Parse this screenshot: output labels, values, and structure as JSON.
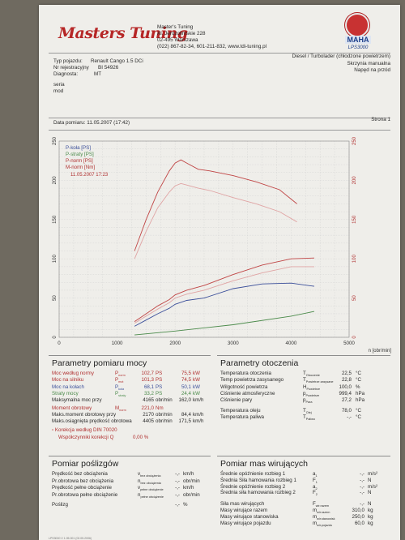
{
  "header": {
    "company": "Master's Tuning",
    "address1": "Al. Jerozolimskie 228",
    "address2": "02-495 Warszawa",
    "contact": "(022) 867-82-34, 601-211-832, www.tdi-tuning.pl",
    "logo": "Masters Tuning",
    "brand": "MAHA",
    "brand_model": "LPS3000"
  },
  "vehicle": {
    "type_label": "Typ pojazdu:",
    "type_value": "Renault Cango 1.5 DCi",
    "reg_label": "Nr rejestracyjny",
    "reg_value": "BI 54926",
    "diag_label": "Diagnosta:",
    "diag_value": "MT",
    "fuel": "Diesel / Turbolader (chłodzone powietrzem)",
    "gearbox": "Skrzynia manualna",
    "drive": "Napęd na przód",
    "seria": "seria",
    "mod": "mod"
  },
  "meta": {
    "date_label": "Data pomiaru: 11.05.2007 (17:42)",
    "page_label": "Strona 1"
  },
  "chart_data": {
    "type": "line",
    "xlabel": "n [obr/min]",
    "x_ticks": [
      "0",
      "1000",
      "2000",
      "3000",
      "4000",
      "5000"
    ],
    "y_left_ticks": [
      "0",
      "50",
      "100",
      "150",
      "200",
      "250"
    ],
    "y_right_ticks": [
      "0",
      "50",
      "100",
      "150",
      "200",
      "250"
    ],
    "xlim": [
      0,
      5000
    ],
    "ylim": [
      0,
      250
    ],
    "grid": true,
    "legend_position": "top-left",
    "legend": [
      {
        "name": "P-koła [PS]",
        "color": "#3b4f9a"
      },
      {
        "name": "P-straty [PS]",
        "color": "#4a8a4a"
      },
      {
        "name": "P-norm [PS]",
        "color": "#b03030"
      },
      {
        "name": "M-norm [Nm]",
        "color": "#b03030"
      }
    ],
    "legend_date": "11.05.2007 17:23",
    "series": [
      {
        "name": "M-norm [Nm]",
        "color": "#c04545",
        "x": [
          1300,
          1500,
          1700,
          1900,
          2000,
          2100,
          2200,
          2400,
          2600,
          3000,
          3400,
          3800,
          4100
        ],
        "y": [
          110,
          150,
          185,
          212,
          222,
          226,
          222,
          214,
          212,
          206,
          198,
          188,
          170
        ]
      },
      {
        "name": "M-norm (2)",
        "color": "#e0a4a4",
        "x": [
          1300,
          1500,
          1700,
          1900,
          2000,
          2100,
          2200,
          2400,
          2600,
          3000,
          3400,
          3800,
          4100
        ],
        "y": [
          100,
          135,
          165,
          185,
          193,
          196,
          194,
          190,
          187,
          178,
          170,
          160,
          147
        ]
      },
      {
        "name": "P-norm [PS]",
        "color": "#c04545",
        "x": [
          1300,
          1500,
          1700,
          1900,
          2000,
          2200,
          2500,
          3000,
          3500,
          4000,
          4400
        ],
        "y": [
          20,
          30,
          40,
          48,
          54,
          60,
          66,
          80,
          92,
          100,
          101
        ]
      },
      {
        "name": "P-norm (2)",
        "color": "#e0a4a4",
        "x": [
          1300,
          1500,
          1700,
          1900,
          2000,
          2200,
          2500,
          3000,
          3500,
          4000,
          4400
        ],
        "y": [
          18,
          27,
          36,
          44,
          50,
          55,
          60,
          72,
          82,
          90,
          90
        ]
      },
      {
        "name": "P-koła [PS]",
        "color": "#3b4f9a",
        "x": [
          1300,
          1500,
          1700,
          1900,
          2000,
          2200,
          2500,
          3000,
          3500,
          4000,
          4400
        ],
        "y": [
          14,
          22,
          30,
          37,
          42,
          47,
          50,
          62,
          68,
          69,
          65
        ]
      },
      {
        "name": "P-straty [PS]",
        "color": "#4a8a4a",
        "x": [
          1300,
          2000,
          3000,
          4000,
          4400
        ],
        "y": [
          3,
          8,
          16,
          27,
          33
        ]
      }
    ]
  },
  "params": {
    "title": "Parametry pomiaru mocy",
    "rows": [
      {
        "label": "Moc według normy",
        "sym": "P",
        "sub": "norm",
        "v1": "102,7",
        "u1": "PS",
        "v2": "75,5",
        "u2": "kW",
        "cls": "red"
      },
      {
        "label": "Moc na silniku",
        "sym": "P",
        "sub": "mot",
        "v1": "101,3",
        "u1": "PS",
        "v2": "74,5",
        "u2": "kW",
        "cls": "red"
      },
      {
        "label": "Moc na kołach",
        "sym": "P",
        "sub": "koła",
        "v1": "68,1",
        "u1": "PS",
        "v2": "50,1",
        "u2": "kW",
        "cls": "blue"
      },
      {
        "label": "Straty mocy",
        "sym": "P",
        "sub": "straty",
        "v1": "33,2",
        "u1": "PS",
        "v2": "24,4",
        "u2": "kW",
        "cls": "green"
      },
      {
        "label": "Maksymalna moc przy",
        "sym": "",
        "sub": "",
        "v1": "4165",
        "u1": "obr/min",
        "v2": "162,0",
        "u2": "km/h",
        "cls": ""
      },
      {
        "label": "Moment obrotowy",
        "sym": "M",
        "sub": "norm",
        "v1": "221,0",
        "u1": "Nm",
        "v2": "",
        "u2": "",
        "cls": "red"
      },
      {
        "label": "Maks.moment obrotowy przy",
        "sym": "",
        "sub": "",
        "v1": "2170",
        "u1": "obr/min",
        "v2": "84,4",
        "u2": "km/h",
        "cls": ""
      },
      {
        "label": "Maks.osiągnięta prędkość obrotowa",
        "sym": "",
        "sub": "",
        "v1": "4405",
        "u1": "obr/min",
        "v2": "171,5",
        "u2": "km/h",
        "cls": ""
      }
    ],
    "correction": "Korekcja według DIN 70020",
    "correction_factor": "Współczynniki korekcji   Q",
    "correction_value": "0,00 %"
  },
  "ambient": {
    "title": "Parametry otoczenia",
    "rows": [
      {
        "label": "Temperatura otoczenia",
        "sym": "T",
        "sub": "Otoczenie",
        "val": "22,5",
        "unit": "°C"
      },
      {
        "label": "Temp powietrza zasysanego",
        "sym": "T",
        "sub": "Powietrze zasysane",
        "val": "22,8",
        "unit": "°C"
      },
      {
        "label": "Wilgotność powietrza",
        "sym": "H",
        "sub": "Powietrze",
        "val": "100,0",
        "unit": "%"
      },
      {
        "label": "Ciśnienie atmosferyczne",
        "sym": "p",
        "sub": "Powietrze",
        "val": "999,4",
        "unit": "hPa"
      },
      {
        "label": "Ciśnienie pary",
        "sym": "p",
        "sub": "Para",
        "val": "27,2",
        "unit": "hPa"
      },
      {
        "label": "Temperatura oleju",
        "sym": "T",
        "sub": "Olej",
        "val": "78,0",
        "unit": "°C"
      },
      {
        "label": "Temperatura paliwa",
        "sym": "T",
        "sub": "Paliwo",
        "val": "-,-",
        "unit": "°C"
      }
    ]
  },
  "slip": {
    "title": "Pomiar poślizgów",
    "rows": [
      {
        "label": "Prędkość bez obciążenia",
        "sym": "v",
        "sub": "bez obciążenia",
        "val": "-,-",
        "unit": "km/h"
      },
      {
        "label": "Pr.obrotowa bez obciążenia",
        "sym": "n",
        "sub": "bez obciążenia",
        "val": "-,-",
        "unit": "obr/min"
      },
      {
        "label": "Prędkość pełne obciążenie",
        "sym": "v",
        "sub": "pełne obciążenie",
        "val": "-,-",
        "unit": "km/h"
      },
      {
        "label": "Pr.obrotowa pełne obciążenie",
        "sym": "n",
        "sub": "pełne obciążenie",
        "val": "-,-",
        "unit": "obr/min"
      },
      {
        "label": "Poślizg",
        "sym": "",
        "sub": "",
        "val": "-,-",
        "unit": "%"
      }
    ]
  },
  "mass": {
    "title": "Pomiar mas wirujących",
    "rows": [
      {
        "label": "Średnie opóźnienie rozbieg 1",
        "sym": "a",
        "sub": "1",
        "val": "-,-",
        "unit": "m/s²"
      },
      {
        "label": "Średnia Siła hamowania rozbieg 1",
        "sym": "F",
        "sub": "1",
        "val": "-,-",
        "unit": "N"
      },
      {
        "label": "Średnie opóźnienie rozbieg 2",
        "sym": "a",
        "sub": "2",
        "val": "-,-",
        "unit": "m/s²"
      },
      {
        "label": "Średnia siła hamowania rozbieg 2",
        "sym": "F",
        "sub": "2",
        "val": "-,-",
        "unit": "N"
      },
      {
        "label": "Siła mas wirujących",
        "sym": "F",
        "sub": "wir.razem",
        "val": "-,-",
        "unit": "N"
      },
      {
        "label": "Masy wirujące razem",
        "sym": "m",
        "sub": "wir.razem",
        "val": "310,0",
        "unit": "kg"
      },
      {
        "label": "Masy wirujące stanowiska",
        "sym": "m",
        "sub": "wir.stanowisk",
        "val": "250,0",
        "unit": "kg"
      },
      {
        "label": "Masy wirujące pojazdu",
        "sym": "m",
        "sub": "wir.pojazdu",
        "val": "60,0",
        "unit": "kg"
      }
    ]
  },
  "footer": "LPS3000 V 1.05.001 (02.05.2006)"
}
